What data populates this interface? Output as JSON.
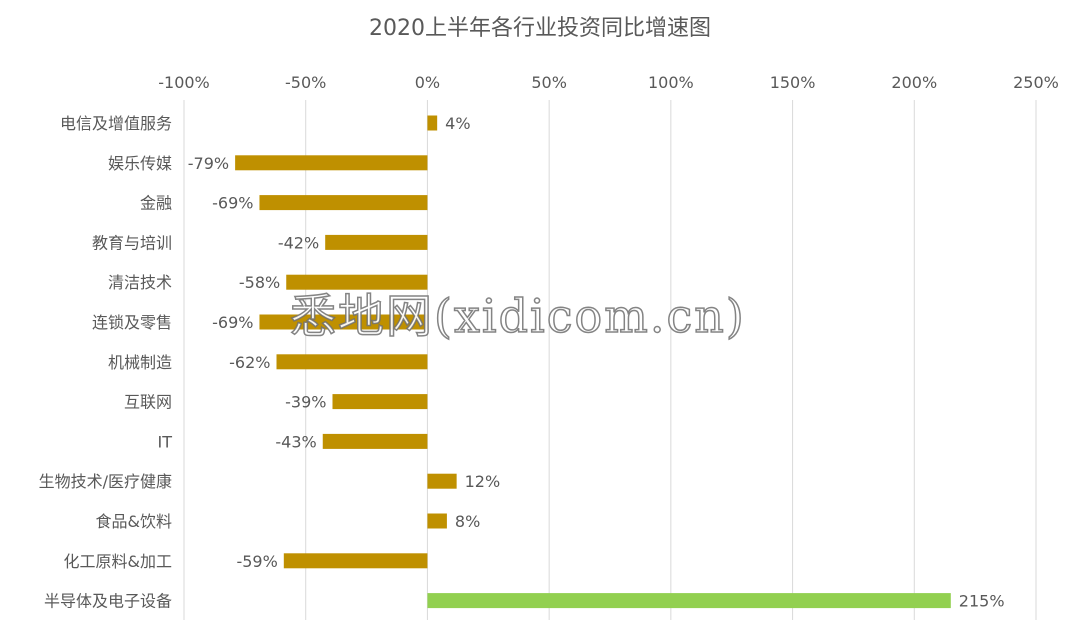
{
  "chart_data": {
    "type": "bar",
    "orientation": "horizontal",
    "title": "2020上半年各行业投资同比增速图",
    "categories": [
      "电信及增值服务",
      "娱乐传媒",
      "金融",
      "教育与培训",
      "清洁技术",
      "连锁及零售",
      "机械制造",
      "互联网",
      "IT",
      "生物技术/医疗健康",
      "食品&饮料",
      "化工原料&加工",
      "半导体及电子设备"
    ],
    "values": [
      4,
      -79,
      -69,
      -42,
      -58,
      -69,
      -62,
      -39,
      -43,
      12,
      8,
      -59,
      215
    ],
    "data_labels": [
      "4%",
      "-79%",
      "-69%",
      "-42%",
      "-58%",
      "-69%",
      "-62%",
      "-39%",
      "-43%",
      "12%",
      "8%",
      "-59%",
      "215%"
    ],
    "x_ticks": [
      -100,
      -50,
      0,
      50,
      100,
      150,
      200,
      250
    ],
    "x_tick_labels": [
      "-100%",
      "-50%",
      "0%",
      "50%",
      "100%",
      "150%",
      "200%",
      "250%"
    ],
    "xlim": [
      -100,
      250
    ],
    "axis_position": "top",
    "grid": true,
    "colors": {
      "default_bar": "#BF9000",
      "highlight_bar": "#92D050",
      "grid": "#D9D9D9",
      "text": "#595959"
    },
    "highlight_index": 12
  },
  "watermark": "悉地网(xidicom.cn)"
}
